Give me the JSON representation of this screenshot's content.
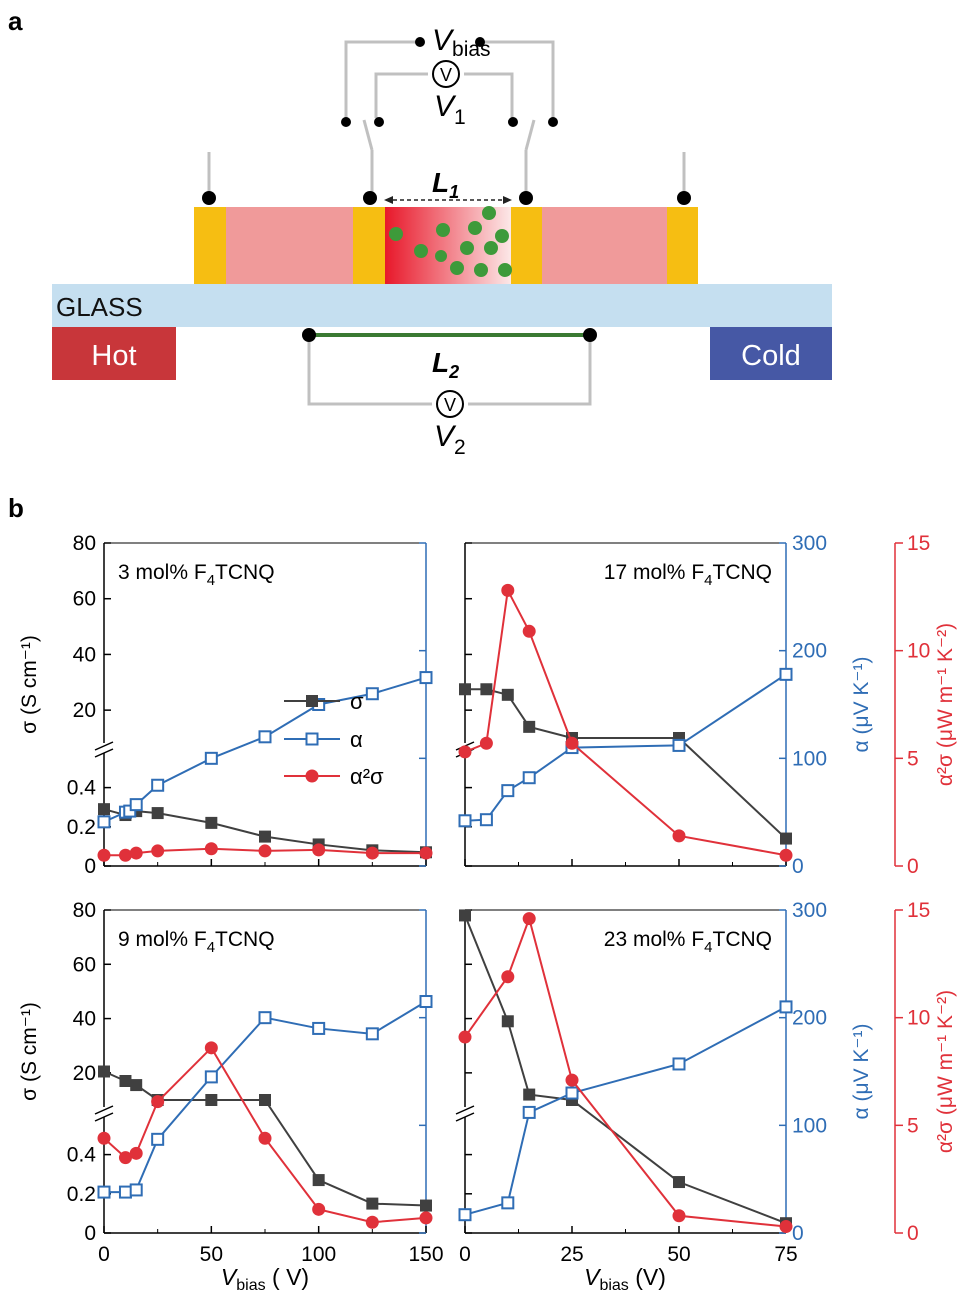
{
  "panel_a": {
    "letter": "a",
    "glass": "GLASS",
    "hot": "Hot",
    "cold": "Cold",
    "vbias": {
      "main": "V",
      "sub": "bias"
    },
    "v1": {
      "main": "V",
      "sub": "1"
    },
    "v2": {
      "main": "V",
      "sub": "2"
    },
    "l1": {
      "main": "L",
      "sub": "1"
    },
    "l2": {
      "main": "L",
      "sub": "2"
    },
    "voltmeter_symbol": "V",
    "colors": {
      "glass": "#c5dff0",
      "hot": "#c8363a",
      "cold": "#4658a5",
      "film": "#f09a9a",
      "contact": "#f6be12",
      "dot": "#3d9a3a",
      "wire": "#c0c0c0",
      "l2_line": "#3a7a32"
    }
  },
  "panel_b": {
    "letter": "b",
    "legend": {
      "sigma": "σ",
      "alpha": "α",
      "pf": "α²σ"
    },
    "colors": {
      "sigma": "#404040",
      "alpha": "#2f6db5",
      "pf": "#e0313a"
    },
    "axes": {
      "left_label": "σ (S cm⁻¹)",
      "alpha_label": "α (μV K⁻¹)",
      "pf_label": "α²σ (μW m⁻¹ K⁻²)",
      "x_label_left": "Vbias ( V)",
      "x_label_right": "Vbias (V)",
      "left_ticks_upper": [
        "80",
        "60",
        "40",
        "20"
      ],
      "left_ticks_lower": [
        "0.4",
        "0.2",
        "0"
      ],
      "alpha_ticks": [
        "300",
        "200",
        "100",
        "0"
      ],
      "pf_ticks": [
        "15",
        "10",
        "5",
        "0"
      ],
      "x_ticks_left": [
        "0",
        "50",
        "100",
        "150"
      ],
      "x_ticks_right": [
        "0",
        "25",
        "50",
        "75"
      ]
    }
  },
  "chart_data": [
    {
      "type": "line",
      "title": "3 mol% F4TCNQ",
      "xlabel": "Vbias (V)",
      "xlim": [
        0,
        150
      ],
      "series": [
        {
          "name": "σ",
          "axis": "left",
          "x": [
            0,
            10,
            15,
            25,
            50,
            75,
            100,
            125,
            150
          ],
          "y": [
            0.29,
            0.26,
            0.28,
            0.27,
            0.22,
            0.15,
            0.11,
            0.08,
            0.07
          ]
        },
        {
          "name": "α",
          "axis": "alpha",
          "x": [
            0,
            10,
            12,
            15,
            25,
            50,
            75,
            100,
            125,
            150
          ],
          "y": [
            41,
            50,
            51,
            57,
            75,
            100,
            120,
            150,
            160,
            175
          ]
        },
        {
          "name": "α²σ",
          "axis": "pf",
          "x": [
            0,
            10,
            15,
            25,
            50,
            75,
            100,
            125,
            150
          ],
          "y": [
            0.5,
            0.5,
            0.6,
            0.7,
            0.8,
            0.7,
            0.75,
            0.6,
            0.6
          ]
        }
      ]
    },
    {
      "type": "line",
      "title": "17 mol% F4TCNQ",
      "xlabel": "Vbias (V)",
      "xlim": [
        0,
        75
      ],
      "series": [
        {
          "name": "σ",
          "axis": "left",
          "x": [
            0,
            5,
            10,
            15,
            25,
            50,
            75
          ],
          "y": [
            27.5,
            27.5,
            25.5,
            14,
            1.2,
            0.9,
            0.14
          ]
        },
        {
          "name": "α",
          "axis": "alpha",
          "x": [
            0,
            5,
            10,
            15,
            25,
            50,
            75
          ],
          "y": [
            42,
            43,
            70,
            82,
            110,
            112,
            178
          ]
        },
        {
          "name": "α²σ",
          "axis": "pf",
          "x": [
            0,
            5,
            10,
            15,
            25,
            50,
            75
          ],
          "y": [
            5.3,
            5.7,
            12.8,
            10.9,
            5.7,
            1.4,
            0.5
          ]
        }
      ]
    },
    {
      "type": "line",
      "title": "9 mol% F4TCNQ",
      "xlabel": "Vbias (V)",
      "xlim": [
        0,
        150
      ],
      "series": [
        {
          "name": "σ",
          "axis": "left",
          "x": [
            0,
            10,
            15,
            25,
            50,
            75,
            100,
            125,
            150
          ],
          "y": [
            20.5,
            17,
            15.5,
            5,
            2.5,
            1.2,
            0.27,
            0.15,
            0.14
          ]
        },
        {
          "name": "α",
          "axis": "alpha",
          "x": [
            0,
            10,
            15,
            25,
            50,
            75,
            100,
            125,
            150
          ],
          "y": [
            38,
            38,
            40,
            87,
            145,
            200,
            190,
            185,
            215
          ]
        },
        {
          "name": "α²σ",
          "axis": "pf",
          "x": [
            0,
            10,
            15,
            25,
            50,
            75,
            100,
            125,
            150
          ],
          "y": [
            4.4,
            3.5,
            3.7,
            6.1,
            8.6,
            4.4,
            1.1,
            0.5,
            0.7
          ]
        }
      ]
    },
    {
      "type": "line",
      "title": "23 mol% F4TCNQ",
      "xlabel": "Vbias (V)",
      "xlim": [
        0,
        75
      ],
      "series": [
        {
          "name": "σ",
          "axis": "left",
          "x": [
            0,
            10,
            15,
            25,
            50,
            75
          ],
          "y": [
            78,
            39,
            12,
            3,
            0.26,
            0.05
          ]
        },
        {
          "name": "α",
          "axis": "alpha",
          "x": [
            0,
            10,
            15,
            25,
            50,
            75
          ],
          "y": [
            17,
            28,
            112,
            130,
            157,
            210
          ]
        },
        {
          "name": "α²σ",
          "axis": "pf",
          "x": [
            0,
            10,
            15,
            25,
            50,
            75
          ],
          "y": [
            9.1,
            11.9,
            14.6,
            7.1,
            0.8,
            0.3
          ]
        }
      ]
    }
  ]
}
